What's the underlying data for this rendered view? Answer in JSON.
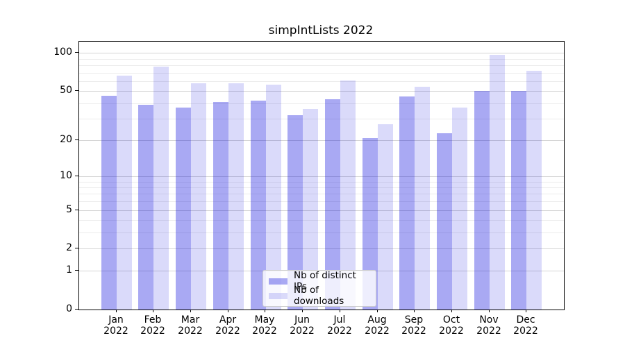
{
  "figure": {
    "background": "#ffffff"
  },
  "chart_data": {
    "type": "bar",
    "title": "simpIntLists 2022",
    "categories": [
      "Jan",
      "Feb",
      "Mar",
      "Apr",
      "May",
      "Jun",
      "Jul",
      "Aug",
      "Sep",
      "Oct",
      "Nov",
      "Dec"
    ],
    "x_tick_year": "2022",
    "series": [
      {
        "name": "Nb of distinct IPs",
        "color": "rgba(10,10,220,0.35)",
        "values": [
          46,
          39,
          37,
          41,
          42,
          32,
          43,
          21,
          45,
          23,
          50,
          50
        ]
      },
      {
        "name": "Nb of downloads",
        "color": "rgba(10,10,220,0.15)",
        "values": [
          66,
          78,
          58,
          58,
          56,
          36,
          61,
          27,
          54,
          37,
          97,
          72
        ]
      }
    ],
    "yscale": "log1p",
    "ylim": [
      0,
      123
    ],
    "yticks": [
      0,
      1,
      2,
      5,
      10,
      20,
      50,
      100
    ],
    "minor_yticks": [
      3,
      4,
      6,
      7,
      8,
      9,
      30,
      40,
      60,
      70,
      80,
      90
    ],
    "grid": true,
    "legend_position": "lower center",
    "colors": {
      "major_grid": "#d4d4d4",
      "minor_grid": "#ececec",
      "spine": "#000000",
      "text": "#000000"
    }
  }
}
